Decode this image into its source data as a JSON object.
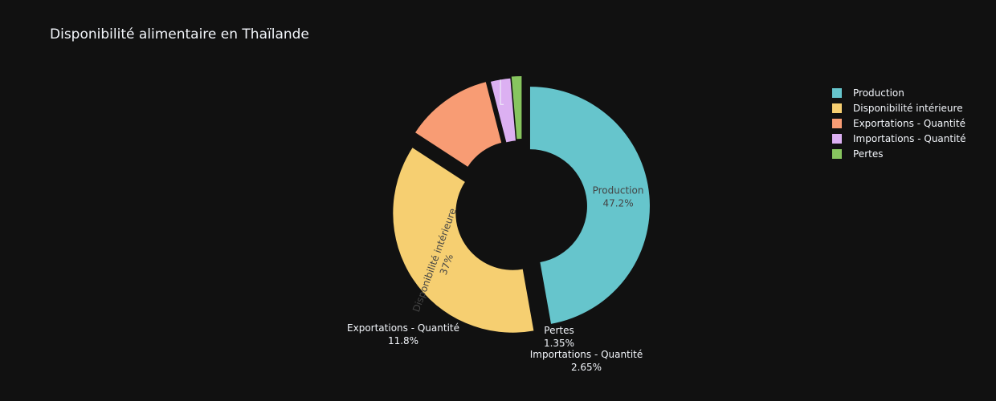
{
  "chart_data": {
    "type": "pie",
    "hole": true,
    "title": "Disponibilité alimentaire en Thaïlande",
    "legend_position": "top-right",
    "slices": [
      {
        "label": "Production",
        "percent": "47.2%",
        "value": 47.2,
        "color": "#66c5cc"
      },
      {
        "label": "Disponibilité intérieure",
        "percent": "37%",
        "value": 37.0,
        "color": "#f6cf71"
      },
      {
        "label": "Exportations - Quantité",
        "percent": "11.8%",
        "value": 11.8,
        "color": "#f89c74"
      },
      {
        "label": "Importations - Quantité",
        "percent": "2.65%",
        "value": 2.65,
        "color": "#dcb0f2"
      },
      {
        "label": "Pertes",
        "percent": "1.35%",
        "value": 1.35,
        "color": "#87c55f"
      }
    ]
  }
}
